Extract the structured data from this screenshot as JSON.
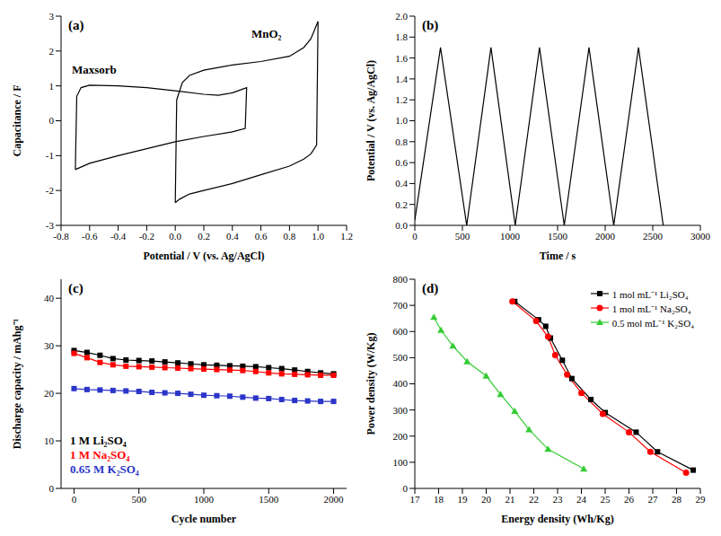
{
  "chart_data": [
    {
      "type": "line",
      "title": "(a)",
      "xlabel": "Potential / V (vs. Ag/AgCl)",
      "ylabel": "Capacitance / F",
      "xlim": [
        -0.8,
        1.2
      ],
      "xticks": [
        -0.8,
        -0.6,
        -0.4,
        -0.2,
        {
          "value": 0,
          "label": "0.0"
        },
        0.2,
        0.4,
        0.6,
        0.8,
        {
          "value": 1,
          "label": "1.0"
        },
        1.2
      ],
      "ylim": [
        -3,
        3
      ],
      "yticks": [
        -3,
        -2,
        -1,
        0,
        1,
        2,
        3
      ],
      "grid": false,
      "series": [
        {
          "name": "Maxsorb",
          "color": "#000000",
          "x": [
            -0.7,
            -0.69,
            -0.66,
            -0.6,
            -0.4,
            -0.2,
            0,
            0.2,
            0.3,
            0.4,
            0.5,
            0.49,
            0.4,
            0.2,
            0,
            -0.2,
            -0.4,
            -0.6,
            -0.7
          ],
          "values": [
            -1.4,
            0.7,
            0.95,
            1.02,
            1.0,
            0.95,
            0.86,
            0.76,
            0.73,
            0.8,
            0.95,
            -0.22,
            -0.32,
            -0.45,
            -0.6,
            -0.8,
            -1.0,
            -1.22,
            -1.4
          ]
        },
        {
          "name": "MnO₂",
          "color": "#000000",
          "x": [
            0,
            0.01,
            0.05,
            0.1,
            0.2,
            0.4,
            0.6,
            0.8,
            0.9,
            0.95,
            1.0,
            0.99,
            0.95,
            0.9,
            0.8,
            0.6,
            0.4,
            0.2,
            0.1,
            0.03,
            0
          ],
          "values": [
            -2.35,
            0.6,
            1.1,
            1.3,
            1.45,
            1.6,
            1.7,
            1.85,
            2.1,
            2.35,
            2.85,
            -0.7,
            -0.95,
            -1.1,
            -1.3,
            -1.55,
            -1.8,
            -2.0,
            -2.1,
            -2.25,
            -2.35
          ]
        }
      ]
    },
    {
      "type": "line",
      "title": "(b)",
      "xlabel": "Time / s",
      "ylabel": "Potential / V (vs. Ag/AgCl)",
      "xlim": [
        0,
        3000
      ],
      "xticks": [
        0,
        500,
        1000,
        1500,
        2000,
        2500,
        3000
      ],
      "ylim": [
        0,
        2
      ],
      "yticks": [
        {
          "value": 0,
          "label": "0.0"
        },
        0.2,
        0.4,
        0.6,
        0.8,
        {
          "value": 1,
          "label": "1.0"
        },
        1.2,
        1.4,
        1.6,
        1.8,
        {
          "value": 2,
          "label": "2.0"
        }
      ],
      "grid": false,
      "series": [
        {
          "color": "#000000",
          "x": [
            0,
            270,
            545,
            800,
            1055,
            1310,
            1570,
            1830,
            2090,
            2350,
            2610
          ],
          "values": [
            0.05,
            1.7,
            0.0,
            1.7,
            0.0,
            1.7,
            0.0,
            1.7,
            0.0,
            1.7,
            0.0
          ]
        }
      ]
    },
    {
      "type": "line",
      "title": "(c)",
      "xlabel": "Cycle number",
      "ylabel": "Discharge capacity / mAhg⁻¹",
      "xlim": [
        -100,
        2100
      ],
      "xticks": [
        0,
        500,
        1000,
        1500,
        2000
      ],
      "ylim": [
        0,
        44
      ],
      "yticks": [
        0,
        10,
        20,
        30,
        40
      ],
      "grid": false,
      "legend": "lower left",
      "x": [
        0,
        100,
        200,
        300,
        400,
        500,
        600,
        700,
        800,
        900,
        1000,
        1100,
        1200,
        1300,
        1400,
        1500,
        1600,
        1700,
        1800,
        1900,
        2000
      ],
      "series": [
        {
          "name": "1 M Li₂SO₄",
          "color": "#000000",
          "marker": "square",
          "values": [
            29.0,
            28.6,
            28.0,
            27.3,
            27.0,
            26.9,
            26.8,
            26.6,
            26.4,
            26.2,
            26.0,
            25.9,
            25.8,
            25.7,
            25.6,
            25.4,
            25.2,
            24.9,
            24.6,
            24.3,
            24.1
          ]
        },
        {
          "name": "1 M Na₂SO₄",
          "color": "#ff0000",
          "marker": "square",
          "values": [
            28.4,
            27.5,
            26.5,
            26.0,
            25.7,
            25.6,
            25.5,
            25.4,
            25.3,
            25.2,
            25.1,
            25.0,
            24.9,
            24.8,
            24.6,
            24.3,
            24.1,
            24.0,
            23.9,
            23.8,
            23.8
          ]
        },
        {
          "name": "0.65 M K₂SO₄",
          "color": "#2b35c8",
          "marker": "square",
          "values": [
            21.0,
            20.8,
            20.7,
            20.6,
            20.5,
            20.4,
            20.2,
            20.1,
            20.0,
            19.8,
            19.6,
            19.5,
            19.4,
            19.2,
            19.0,
            18.9,
            18.7,
            18.5,
            18.4,
            18.3,
            18.3
          ]
        }
      ]
    },
    {
      "type": "line",
      "title": "(d)",
      "xlabel": "Energy density (Wh/Kg)",
      "ylabel": "Power density (W/Kg)",
      "xlim": [
        17,
        29
      ],
      "xticks": [
        17,
        18,
        19,
        20,
        21,
        22,
        23,
        24,
        25,
        26,
        27,
        28,
        29
      ],
      "ylim": [
        0,
        800
      ],
      "yticks": [
        0,
        100,
        200,
        300,
        400,
        500,
        600,
        700,
        800
      ],
      "grid": false,
      "legend": "upper right",
      "series": [
        {
          "name": "1 mol mL⁻¹ Li₂SO₄",
          "color": "#000000",
          "marker": "square",
          "x": [
            21.2,
            22.2,
            22.5,
            22.7,
            23.2,
            23.6,
            24.4,
            25.0,
            26.3,
            27.2,
            28.7
          ],
          "values": [
            715,
            645,
            620,
            575,
            490,
            420,
            340,
            290,
            215,
            140,
            70
          ]
        },
        {
          "name": "1 mol mL⁻¹ Na₂SO₄",
          "color": "#ff0000",
          "marker": "circle",
          "x": [
            21.1,
            22.1,
            22.6,
            22.9,
            23.4,
            24.0,
            24.9,
            26.0,
            26.9,
            28.4
          ],
          "values": [
            715,
            640,
            580,
            510,
            435,
            365,
            285,
            215,
            140,
            60
          ]
        },
        {
          "name": "0.5 mol mL⁻¹ K₂SO₄",
          "color": "#33cc33",
          "marker": "triangle",
          "x": [
            17.8,
            18.1,
            18.6,
            19.2,
            20.0,
            20.6,
            21.2,
            21.8,
            22.6,
            24.1
          ],
          "values": [
            655,
            605,
            545,
            485,
            430,
            360,
            295,
            225,
            150,
            75
          ]
        }
      ]
    }
  ]
}
